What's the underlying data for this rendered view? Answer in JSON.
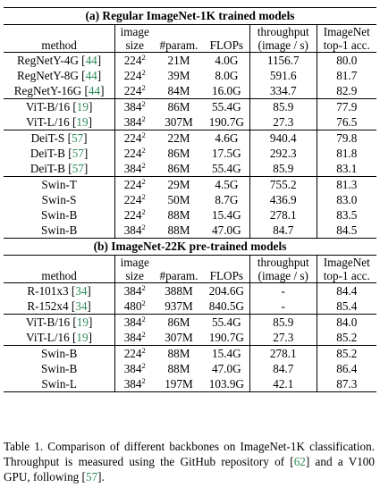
{
  "header_labels": {
    "method": "method",
    "image": "image",
    "size": "size",
    "param": "#param.",
    "flops": "FLOPs",
    "throughput": "throughput",
    "throughput_unit": "(image / s)",
    "imagenet": "ImageNet",
    "top1": "top-1 acc."
  },
  "sections": [
    {
      "title": "(a) Regular ImageNet-1K trained models",
      "groups": [
        [
          {
            "name": "RegNetY-4G",
            "cite": "44",
            "res": "224",
            "params": "21M",
            "flops": "4.0G",
            "throughput": "1156.7",
            "top1": "80.0"
          },
          {
            "name": "RegNetY-8G",
            "cite": "44",
            "res": "224",
            "params": "39M",
            "flops": "8.0G",
            "throughput": "591.6",
            "top1": "81.7"
          },
          {
            "name": "RegNetY-16G",
            "cite": "44",
            "res": "224",
            "params": "84M",
            "flops": "16.0G",
            "throughput": "334.7",
            "top1": "82.9"
          }
        ],
        [
          {
            "name": "ViT-B/16",
            "cite": "19",
            "res": "384",
            "params": "86M",
            "flops": "55.4G",
            "throughput": "85.9",
            "top1": "77.9"
          },
          {
            "name": "ViT-L/16",
            "cite": "19",
            "res": "384",
            "params": "307M",
            "flops": "190.7G",
            "throughput": "27.3",
            "top1": "76.5"
          }
        ],
        [
          {
            "name": "DeiT-S",
            "cite": "57",
            "res": "224",
            "params": "22M",
            "flops": "4.6G",
            "throughput": "940.4",
            "top1": "79.8"
          },
          {
            "name": "DeiT-B",
            "cite": "57",
            "res": "224",
            "params": "86M",
            "flops": "17.5G",
            "throughput": "292.3",
            "top1": "81.8"
          },
          {
            "name": "DeiT-B",
            "cite": "57",
            "res": "384",
            "params": "86M",
            "flops": "55.4G",
            "throughput": "85.9",
            "top1": "83.1"
          }
        ],
        [
          {
            "name": "Swin-T",
            "cite": "",
            "res": "224",
            "params": "29M",
            "flops": "4.5G",
            "throughput": "755.2",
            "top1": "81.3"
          },
          {
            "name": "Swin-S",
            "cite": "",
            "res": "224",
            "params": "50M",
            "flops": "8.7G",
            "throughput": "436.9",
            "top1": "83.0"
          },
          {
            "name": "Swin-B",
            "cite": "",
            "res": "224",
            "params": "88M",
            "flops": "15.4G",
            "throughput": "278.1",
            "top1": "83.5"
          },
          {
            "name": "Swin-B",
            "cite": "",
            "res": "384",
            "params": "88M",
            "flops": "47.0G",
            "throughput": "84.7",
            "top1": "84.5"
          }
        ]
      ]
    },
    {
      "title": "(b) ImageNet-22K pre-trained models",
      "groups": [
        [
          {
            "name": "R-101x3",
            "cite": "34",
            "res": "384",
            "params": "388M",
            "flops": "204.6G",
            "throughput": "-",
            "top1": "84.4"
          },
          {
            "name": "R-152x4",
            "cite": "34",
            "res": "480",
            "params": "937M",
            "flops": "840.5G",
            "throughput": "-",
            "top1": "85.4"
          }
        ],
        [
          {
            "name": "ViT-B/16",
            "cite": "19",
            "res": "384",
            "params": "86M",
            "flops": "55.4G",
            "throughput": "85.9",
            "top1": "84.0"
          },
          {
            "name": "ViT-L/16",
            "cite": "19",
            "res": "384",
            "params": "307M",
            "flops": "190.7G",
            "throughput": "27.3",
            "top1": "85.2"
          }
        ],
        [
          {
            "name": "Swin-B",
            "cite": "",
            "res": "224",
            "params": "88M",
            "flops": "15.4G",
            "throughput": "278.1",
            "top1": "85.2"
          },
          {
            "name": "Swin-B",
            "cite": "",
            "res": "384",
            "params": "88M",
            "flops": "47.0G",
            "throughput": "84.7",
            "top1": "86.4"
          },
          {
            "name": "Swin-L",
            "cite": "",
            "res": "384",
            "params": "197M",
            "flops": "103.9G",
            "throughput": "42.1",
            "top1": "87.3"
          }
        ]
      ]
    }
  ],
  "size_exponent": "2",
  "caption": {
    "part1": "Table 1. Comparison of different backbones on ImageNet-1K classification. Throughput is measured using the GitHub repository of [",
    "cite1": "62",
    "part2": "] and a V100 GPU, following [",
    "cite2": "57",
    "part3": "]."
  },
  "colors": {
    "citation": "#2e8b57",
    "text": "#000000"
  }
}
